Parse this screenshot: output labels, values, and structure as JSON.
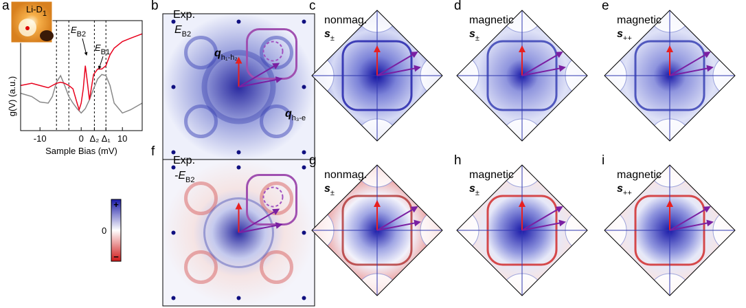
{
  "chart_data": {
    "type": "line",
    "panel_label": "a",
    "xlabel": "Sample Bias (mV)",
    "ylabel": "g(V) (a.u.)",
    "inset_label": {
      "text": "Li-D",
      "sub": "1"
    },
    "xlim": [
      -14.7,
      14.8
    ],
    "ylim": [
      0,
      1
    ],
    "xticks": [
      -10,
      0,
      {
        "value": 3.2,
        "label": "Δ₂"
      },
      {
        "value": 6,
        "label": "Δ₁"
      },
      10
    ],
    "dashed_lines": [
      -6,
      -3,
      3.2,
      6
    ],
    "x": [
      -14.7,
      -12,
      -10,
      -8,
      -7,
      -6,
      -5,
      -4,
      -3,
      -2,
      -1,
      -0.5,
      0,
      0.5,
      1,
      1.5,
      2,
      3,
      4,
      5,
      6,
      7,
      8,
      10,
      12,
      14.8
    ],
    "series": [
      {
        "color": "#888888",
        "values": [
          0.34,
          0.31,
          0.26,
          0.25,
          0.31,
          0.44,
          0.5,
          0.41,
          0.31,
          0.25,
          0.2,
          0.18,
          0.16,
          0.18,
          0.2,
          0.24,
          0.28,
          0.38,
          0.47,
          0.51,
          0.5,
          0.41,
          0.25,
          0.16,
          0.19,
          0.25
        ]
      },
      {
        "color": "#e8001c",
        "values": [
          0.41,
          0.43,
          0.41,
          0.39,
          0.41,
          0.43,
          0.44,
          0.43,
          0.41,
          0.38,
          0.25,
          0.19,
          0.25,
          0.38,
          0.59,
          0.44,
          0.28,
          0.51,
          0.56,
          0.56,
          0.59,
          0.69,
          0.75,
          0.81,
          0.84,
          0.88
        ]
      }
    ],
    "annotations": [
      {
        "text": "E",
        "sub": "B2"
      },
      {
        "text": "E",
        "sub": "B1"
      }
    ]
  },
  "panels": [
    {
      "label": "b",
      "lines": [
        {
          "text": "Exp."
        },
        {
          "text": "E",
          "sub": "B2"
        }
      ],
      "q_labels": [
        {
          "text": "q",
          "sub": "h₁-h₂"
        },
        {
          "text": "q",
          "sub": "h₃-e"
        }
      ]
    },
    {
      "label": "f",
      "lines": [
        {
          "text": "Exp."
        },
        {
          "text": "-E",
          "sub": "B2"
        }
      ]
    },
    {
      "label": "c",
      "lines": [
        {
          "text": "nonmag."
        },
        {
          "text": "s",
          "sub": "±"
        }
      ]
    },
    {
      "label": "d",
      "lines": [
        {
          "text": "magnetic"
        },
        {
          "text": "s",
          "sub": "±"
        }
      ]
    },
    {
      "label": "e",
      "lines": [
        {
          "text": "magnetic"
        },
        {
          "text": "s",
          "sub": "++"
        }
      ]
    },
    {
      "label": "g",
      "lines": [
        {
          "text": "nonmag."
        },
        {
          "text": "s",
          "sub": "±"
        }
      ]
    },
    {
      "label": "h",
      "lines": [
        {
          "text": "magnetic"
        },
        {
          "text": "s",
          "sub": "±"
        }
      ]
    },
    {
      "label": "i",
      "lines": [
        {
          "text": "magnetic"
        },
        {
          "text": "s",
          "sub": "++"
        }
      ]
    }
  ],
  "colorbar": {
    "plus": "+",
    "zero": "0",
    "minus": "−"
  }
}
